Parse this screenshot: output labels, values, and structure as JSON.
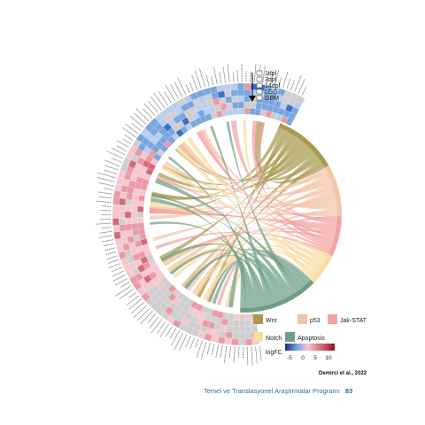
{
  "sample_legend": {
    "items": [
      {
        "label": "1dpl",
        "fill": "#ffffff"
      },
      {
        "label": "3dpl",
        "fill": "#ffffff"
      },
      {
        "label": "14dpl",
        "fill": "#ffffff"
      },
      {
        "label": "LGG",
        "fill": "#ffffff"
      },
      {
        "label": "GBM",
        "fill": "#ffffff"
      }
    ]
  },
  "pathway_legend": {
    "items": [
      {
        "label": "Wnt",
        "color": "#a89a4e"
      },
      {
        "label": "p53",
        "color": "#f2c4a8"
      },
      {
        "label": "Jak-STAT",
        "color": "#f3a3a3"
      },
      {
        "label": "Notch",
        "color": "#f8dca4"
      },
      {
        "label": "Apoptosis",
        "color": "#6f9e85"
      }
    ]
  },
  "logfc_legend": {
    "title": "logFC",
    "ticks": [
      "-5",
      "0",
      "5",
      "10"
    ],
    "colors": [
      "#1b2c8f",
      "#7aa6de",
      "#f3c9cf",
      "#d46a78",
      "#8e1426"
    ]
  },
  "pathway_sectors": [
    {
      "name": "Wnt",
      "color": "#a89a4e",
      "share": 0.16
    },
    {
      "name": "p53",
      "color": "#f2c4a8",
      "share": 0.13
    },
    {
      "name": "Jak-STAT",
      "color": "#f3a3a3",
      "share": 0.1
    },
    {
      "name": "Notch",
      "color": "#f8dca4",
      "share": 0.08
    },
    {
      "name": "Apoptosis",
      "color": "#6f9e85",
      "share": 0.2
    }
  ],
  "credit": "Demirci et al., 2022",
  "footer": {
    "text": "Temel ve Translasyonel Araştırmalar Programı",
    "page": "83"
  }
}
